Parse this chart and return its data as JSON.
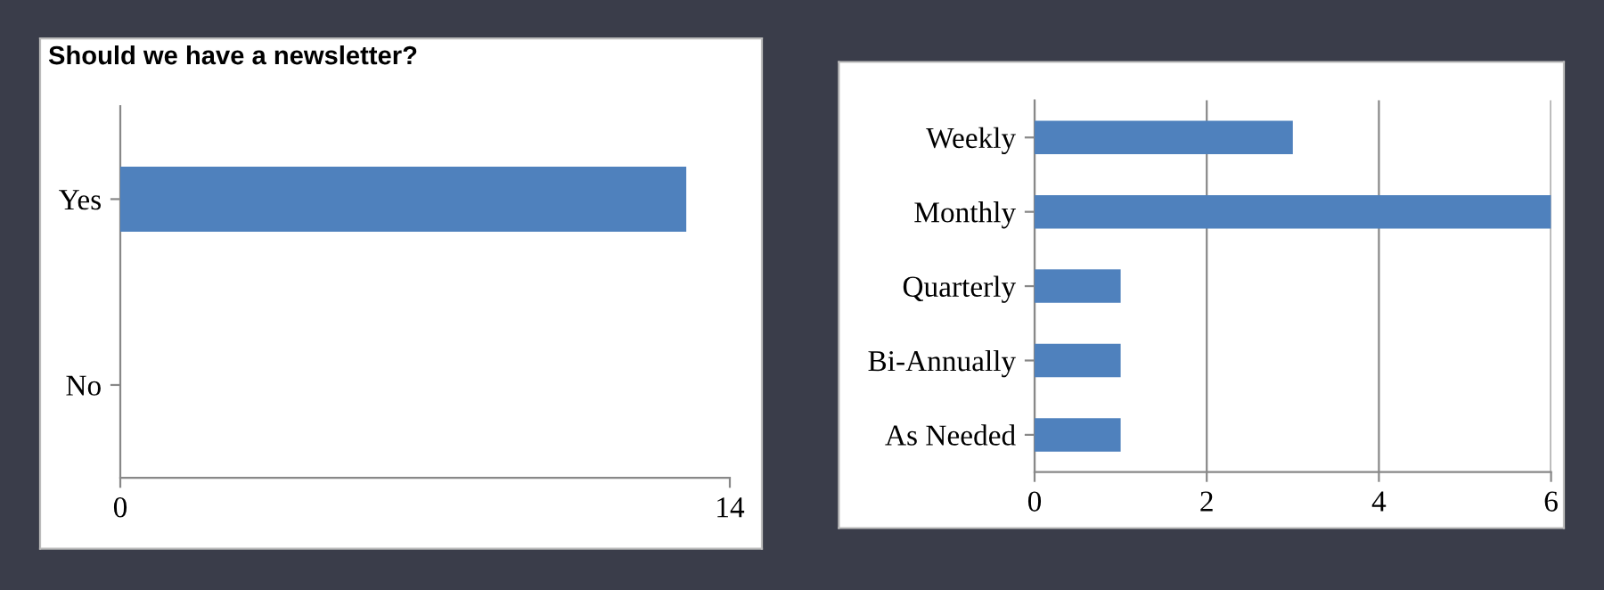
{
  "chart_data": [
    {
      "type": "bar",
      "title": "Should we have a newsletter?",
      "orientation": "horizontal",
      "categories": [
        "Yes",
        "No"
      ],
      "values": [
        13,
        0
      ],
      "color": "#4f81bd",
      "xlim": [
        0,
        14
      ],
      "xticks": [
        0,
        14
      ],
      "grid": false
    },
    {
      "type": "bar",
      "orientation": "horizontal",
      "categories": [
        "Weekly",
        "Monthly",
        "Quarterly",
        "Bi-Annually",
        "As Needed"
      ],
      "values": [
        3,
        6,
        1,
        1,
        1
      ],
      "color": "#4f81bd",
      "xlim": [
        0,
        6
      ],
      "xticks": [
        0,
        2,
        4,
        6
      ],
      "grid": "x"
    }
  ]
}
